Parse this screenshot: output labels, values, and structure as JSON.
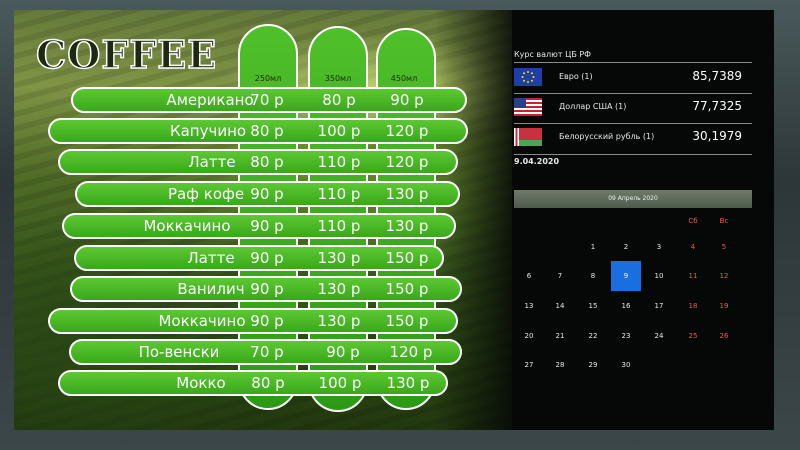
{
  "menu": {
    "title": "COFFEE",
    "sizes": [
      "250мл",
      "350мл",
      "450мл"
    ],
    "items": [
      {
        "name": "Американо",
        "prices": [
          "70 р",
          "80 р",
          "90 р"
        ]
      },
      {
        "name": "Капучино",
        "prices": [
          "80 р",
          "100 р",
          "120 р"
        ]
      },
      {
        "name": "Латте",
        "prices": [
          "80 р",
          "110 р",
          "120 р"
        ]
      },
      {
        "name": "Раф кофе",
        "prices": [
          "90 р",
          "110 р",
          "130 р"
        ]
      },
      {
        "name": "Моккачино",
        "prices": [
          "90 р",
          "110 р",
          "130 р"
        ]
      },
      {
        "name": "Латте",
        "prices": [
          "90 р",
          "130 р",
          "150 р"
        ]
      },
      {
        "name": "Ванилич",
        "prices": [
          "90 р",
          "130 р",
          "150 р"
        ]
      },
      {
        "name": "Моккачино",
        "prices": [
          "90 р",
          "130 р",
          "150 р"
        ]
      },
      {
        "name": "По-венски",
        "prices": [
          "70 р",
          "90 р",
          "120 р"
        ]
      },
      {
        "name": "Мокко",
        "prices": [
          "80 р",
          "100 р",
          "130 р"
        ]
      }
    ]
  },
  "currency": {
    "title": "Курс валют ЦБ РФ",
    "rates": [
      {
        "flag": "eu-flag-icon",
        "name": "Евро (1)",
        "value": "85,7389"
      },
      {
        "flag": "us-flag-icon",
        "name": "Доллар США (1)",
        "value": "77,7325"
      },
      {
        "flag": "by-flag-icon",
        "name": "Белорусский рубль (1)",
        "value": "30,1979"
      }
    ],
    "date": "9.04.2020"
  },
  "calendar": {
    "header": "09 Апрель 2020",
    "weekday_labels": [
      "Сб",
      "Вс"
    ],
    "weeks": [
      [
        "",
        "",
        "1",
        "2",
        "3",
        "4",
        "5"
      ],
      [
        "6",
        "7",
        "8",
        "9",
        "10",
        "11",
        "12"
      ],
      [
        "13",
        "14",
        "15",
        "16",
        "17",
        "18",
        "19"
      ],
      [
        "20",
        "21",
        "22",
        "23",
        "24",
        "25",
        "26"
      ],
      [
        "27",
        "28",
        "29",
        "30",
        "",
        "",
        ""
      ]
    ],
    "today": "9",
    "colors": {
      "today": "#1a6fe0",
      "weekend": "#f05b4b"
    }
  }
}
